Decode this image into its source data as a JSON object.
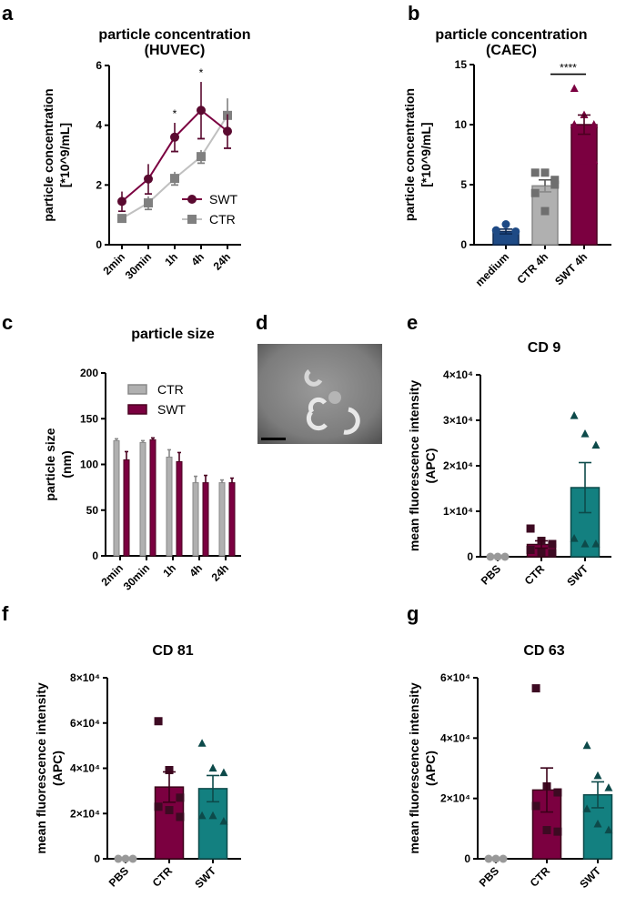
{
  "panels": {
    "a": "a",
    "b": "b",
    "c": "c",
    "d": "d",
    "e": "e",
    "f": "f",
    "g": "g"
  },
  "colors": {
    "swt": "#7b0040",
    "swt_dark": "#5a0a30",
    "ctr": "#b0b0b0",
    "ctr_dark": "#808080",
    "medium": "#1e4a85",
    "teal": "#138080",
    "teal_dark": "#0d4a4a",
    "pbs": "#999999"
  },
  "chart_data": [
    {
      "id": "a",
      "type": "line",
      "title": "particle concentration",
      "subtitle": "(HUVEC)",
      "ylabel": "particle concentration",
      "ylabel2": "[*10^9/mL]",
      "ylim": [
        0,
        6
      ],
      "yticks": [
        0,
        2,
        4,
        6
      ],
      "categories": [
        "2min",
        "30min",
        "1h",
        "4h",
        "24h"
      ],
      "series": [
        {
          "name": "SWT",
          "values": [
            1.45,
            2.2,
            3.6,
            4.5,
            3.8
          ],
          "err": [
            0.33,
            0.5,
            0.48,
            0.95,
            0.57
          ]
        },
        {
          "name": "CTR",
          "values": [
            0.88,
            1.4,
            2.22,
            2.95,
            4.33
          ],
          "err": [
            0.1,
            0.22,
            0.22,
            0.22,
            0.57
          ]
        }
      ],
      "annotations": [
        {
          "category": "1h",
          "text": "*"
        },
        {
          "category": "4h",
          "text": "*"
        }
      ],
      "legend": "right"
    },
    {
      "id": "b",
      "type": "bar",
      "title": "particle concentration",
      "subtitle": "(CAEC)",
      "ylabel": "particle concentration",
      "ylabel2": "[*10^9/mL]",
      "ylim": [
        0,
        15
      ],
      "yticks": [
        0,
        5,
        10,
        15
      ],
      "categories": [
        "medium",
        "CTR 4h",
        "SWT 4h"
      ],
      "values": [
        1.1,
        4.9,
        10.0
      ],
      "err": [
        0.2,
        0.5,
        0.8
      ],
      "points": [
        [
          1.2,
          1.7,
          1.1
        ],
        [
          6.0,
          6.0,
          5.4,
          4.3,
          2.8,
          5.0
        ],
        [
          13.0,
          10.8,
          10.0,
          10.0,
          7.0,
          7.0
        ]
      ],
      "annotations": [
        {
          "from": "CTR 4h",
          "to": "SWT 4h",
          "text": "****"
        }
      ]
    },
    {
      "id": "c",
      "type": "bar",
      "title": "particle size",
      "ylabel": "particle size",
      "ylabel2": "(nm)",
      "ylim": [
        0,
        200
      ],
      "yticks": [
        0,
        50,
        100,
        150,
        200
      ],
      "categories": [
        "2min",
        "30min",
        "1h",
        "4h",
        "24h"
      ],
      "series": [
        {
          "name": "CTR",
          "values": [
            126,
            124,
            108,
            80,
            80
          ],
          "err": [
            2,
            2,
            8,
            7,
            3
          ]
        },
        {
          "name": "SWT",
          "values": [
            105,
            127,
            103,
            80,
            80
          ],
          "err": [
            9,
            2,
            10,
            8,
            5
          ]
        }
      ],
      "legend": "top-left"
    },
    {
      "id": "e",
      "type": "bar",
      "title": "CD 9",
      "ylabel": "mean fluorescence intensity",
      "ylabel2": "(APC)",
      "ylim": [
        0,
        40000
      ],
      "yticks": [
        0,
        10000,
        20000,
        30000,
        40000
      ],
      "ytick_labels": [
        "0",
        "1×10⁴",
        "2×10⁴",
        "3×10⁴",
        "4×10⁴"
      ],
      "categories": [
        "PBS",
        "CTR",
        "SWT"
      ],
      "values": [
        0,
        2700,
        15200
      ],
      "err": [
        0,
        800,
        5500
      ],
      "points": [
        [
          0,
          0,
          0
        ],
        [
          6200,
          3500,
          2800,
          1500,
          1000,
          800
        ],
        [
          31000,
          27000,
          24500,
          4000,
          2800,
          2800
        ]
      ]
    },
    {
      "id": "f",
      "type": "bar",
      "title": "CD 81",
      "ylabel": "mean fluorescence intensity",
      "ylabel2": "(APC)",
      "ylim": [
        0,
        80000
      ],
      "yticks": [
        0,
        20000,
        40000,
        60000,
        80000
      ],
      "ytick_labels": [
        "0",
        "2×10⁴",
        "4×10⁴",
        "6×10⁴",
        "8×10⁴"
      ],
      "categories": [
        "PBS",
        "CTR",
        "SWT"
      ],
      "values": [
        0,
        31700,
        31000
      ],
      "err": [
        0,
        6700,
        5800
      ],
      "points": [
        [
          0,
          0,
          0
        ],
        [
          60800,
          39200,
          27000,
          23000,
          21500,
          18500
        ],
        [
          51000,
          40000,
          38000,
          19000,
          19000,
          16500
        ]
      ]
    },
    {
      "id": "g",
      "type": "bar",
      "title": "CD 63",
      "ylabel": "mean fluorescence intensity",
      "ylabel2": "(APC)",
      "ylim": [
        0,
        60000
      ],
      "yticks": [
        0,
        20000,
        40000,
        60000
      ],
      "ytick_labels": [
        "0",
        "2×10⁴",
        "4×10⁴",
        "6×10⁴"
      ],
      "categories": [
        "PBS",
        "CTR",
        "SWT"
      ],
      "values": [
        0,
        22800,
        21200
      ],
      "err": [
        0,
        7300,
        4300
      ],
      "points": [
        [
          0,
          0,
          0
        ],
        [
          56500,
          24000,
          22000,
          17500,
          9500,
          9000
        ],
        [
          37500,
          27500,
          23500,
          16500,
          11500,
          9500
        ]
      ]
    }
  ],
  "image_d": {
    "description": "TEM micrograph of vesicles",
    "scale_bar": true
  }
}
